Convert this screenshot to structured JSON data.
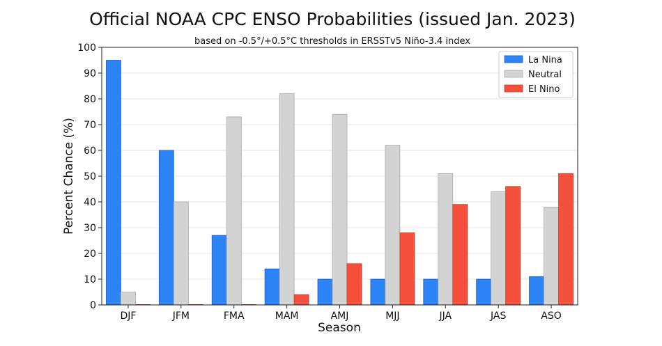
{
  "chart_data": {
    "type": "bar",
    "title": "Official NOAA CPC ENSO Probabilities (issued Jan. 2023)",
    "subtitle": "based on -0.5°/+0.5°C thresholds in ERSSTv5 Niño-3.4 index",
    "xlabel": "Season",
    "ylabel": "Percent Chance (%)",
    "ylim": [
      0,
      100
    ],
    "yticks": [
      0,
      10,
      20,
      30,
      40,
      50,
      60,
      70,
      80,
      90,
      100
    ],
    "grid": true,
    "legend_position": "top-right",
    "categories": [
      "DJF",
      "JFM",
      "FMA",
      "MAM",
      "AMJ",
      "MJJ",
      "JJA",
      "JAS",
      "ASO"
    ],
    "series": [
      {
        "name": "La Nina",
        "color": "#2b83f6",
        "values": [
          95,
          60,
          27,
          14,
          10,
          10,
          10,
          10,
          11
        ]
      },
      {
        "name": "Neutral",
        "color": "#d3d3d3",
        "values": [
          5,
          40,
          73,
          82,
          74,
          62,
          51,
          44,
          38
        ]
      },
      {
        "name": "El Nino",
        "color": "#f5503c",
        "values": [
          0,
          0,
          0,
          4,
          16,
          28,
          39,
          46,
          51
        ]
      }
    ]
  }
}
